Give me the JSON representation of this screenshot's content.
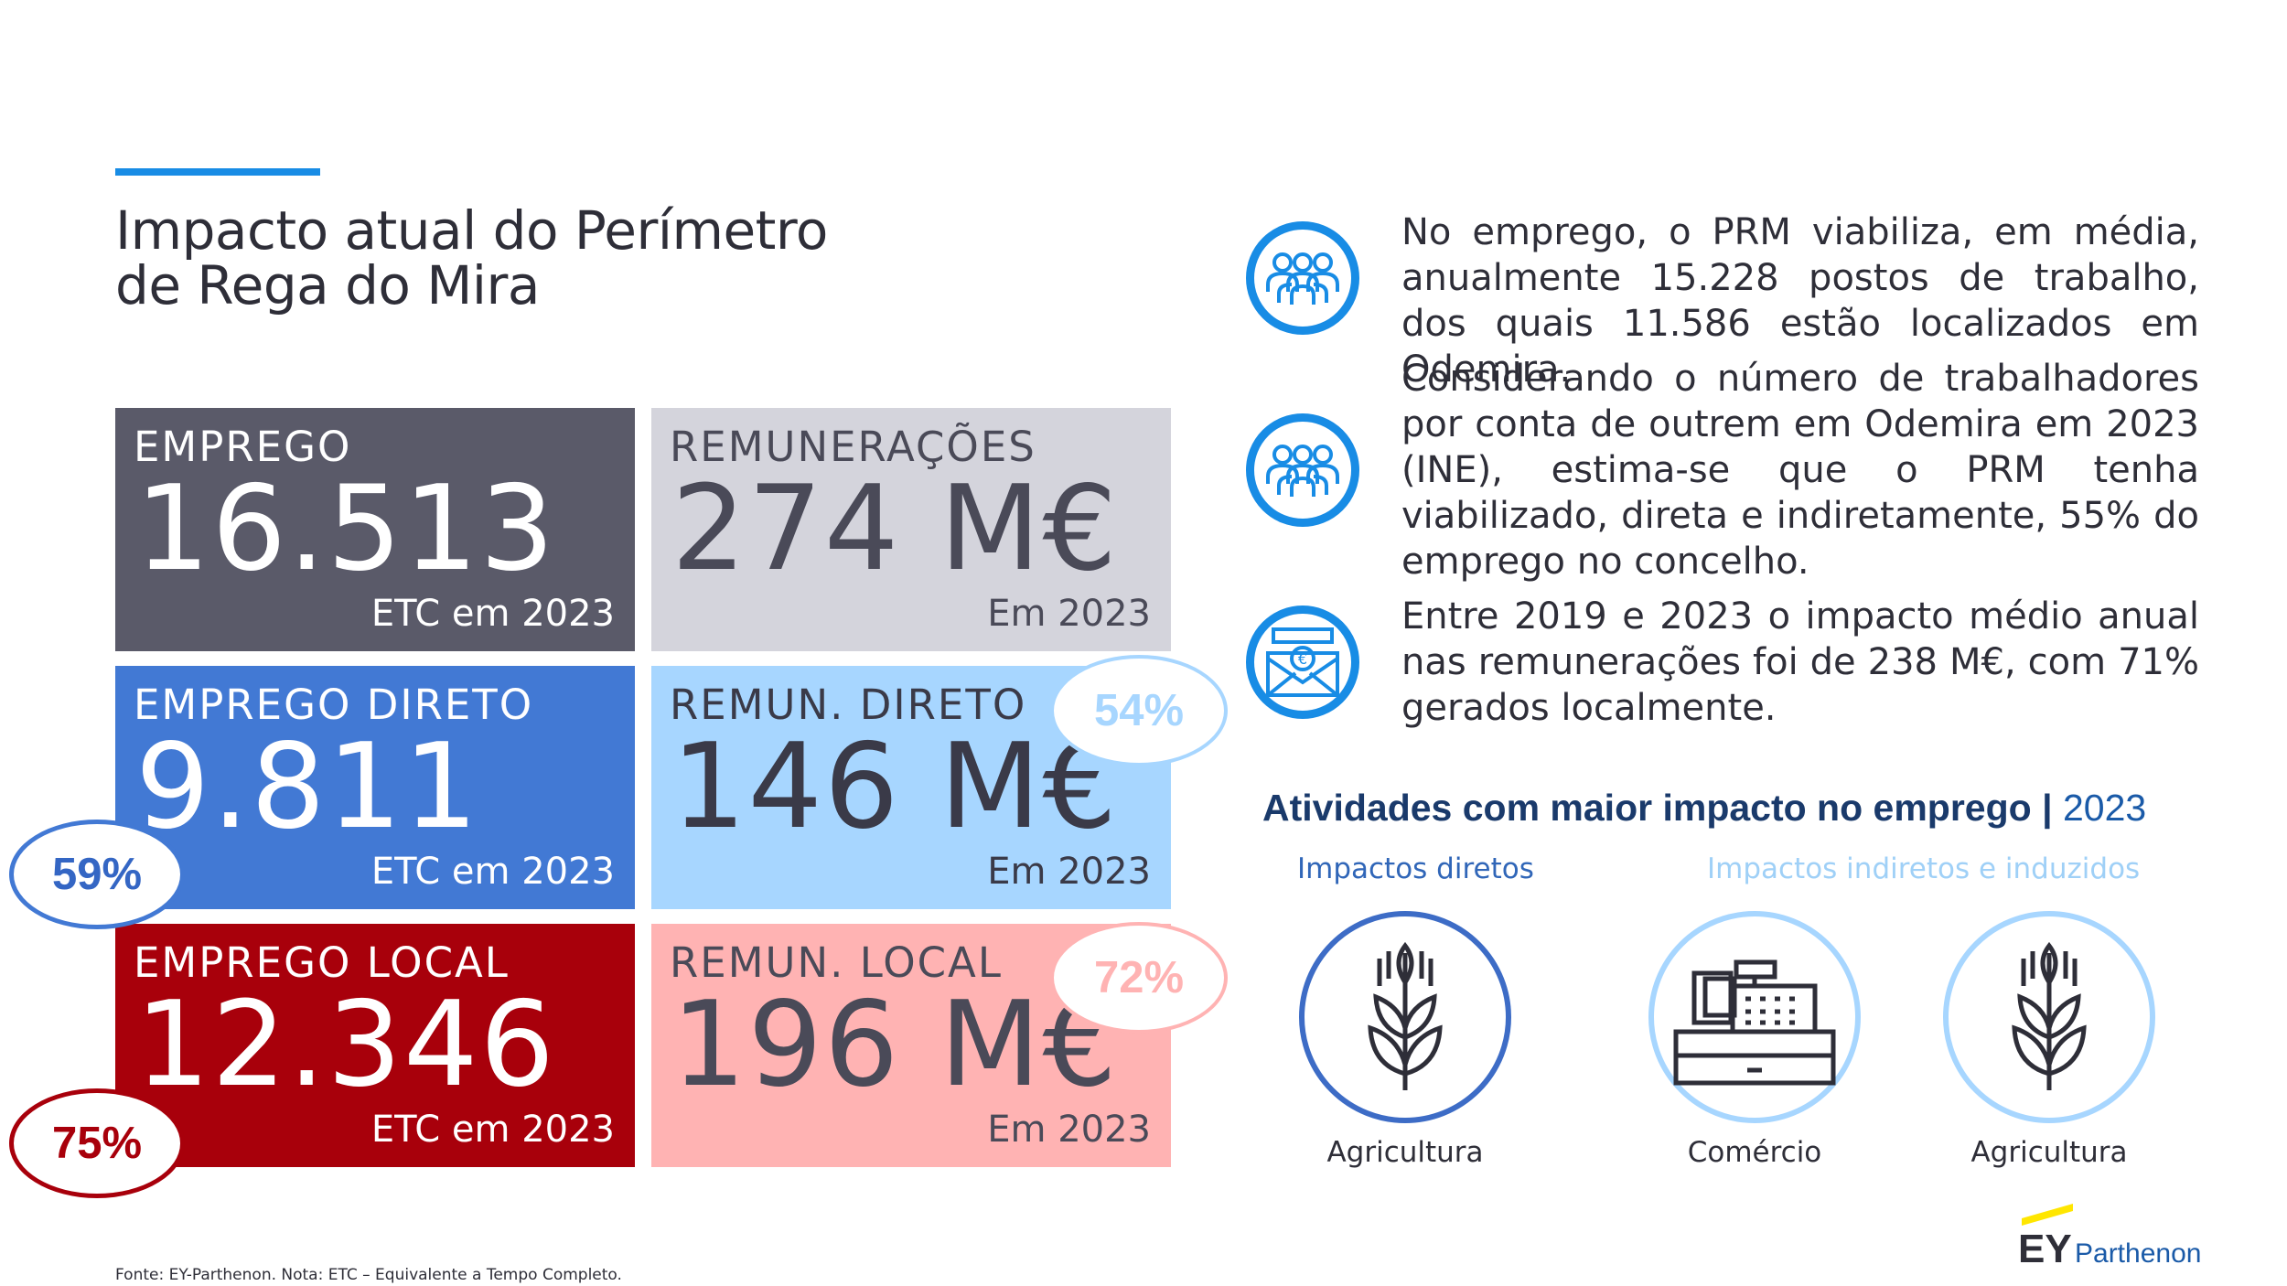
{
  "header": {
    "title_line1": "Impacto atual do Perímetro",
    "title_line2": "de Rega do Mira"
  },
  "cards": {
    "emprego": {
      "label": "EMPREGO",
      "value": "16.513",
      "unit": "ETC em 2023"
    },
    "remuneracoes": {
      "label": "REMUNERAÇÕES",
      "value": "274 M€",
      "unit": "Em 2023"
    },
    "emprego_direto": {
      "label": "EMPREGO DIRETO",
      "value": "9.811",
      "unit": "ETC em 2023",
      "share": "59%"
    },
    "remun_direto": {
      "label": "REMUN. DIRETO",
      "value": "146 M€",
      "unit": "Em 2023",
      "share": "54%"
    },
    "emprego_local": {
      "label": "EMPREGO LOCAL",
      "value": "12.346",
      "unit": "ETC em 2023",
      "share": "75%"
    },
    "remun_local": {
      "label": "REMUN. LOCAL",
      "value": "196 M€",
      "unit": "Em 2023",
      "share": "72%"
    }
  },
  "paragraphs": [
    {
      "icon": "people-group-icon",
      "text": "No emprego, o PRM viabiliza, em média, anualmente 15.228 postos de trabalho, dos quais 11.586 estão localizados em Odemira."
    },
    {
      "icon": "people-group-icon",
      "text": "Considerando o número de trabalhadores por conta de outrem em Odemira em 2023 (INE), estima-se que o PRM tenha viabilizado, direta e indiretamente, 55% do emprego no concelho."
    },
    {
      "icon": "euro-envelope-icon",
      "text": "Entre 2019 e 2023 o impacto médio anual nas remunerações foi de 238 M€, com 71% gerados localmente."
    }
  ],
  "activities": {
    "title": "Atividades com maior impacto no emprego",
    "separator": "|",
    "year": "2023",
    "direct_label": "Impactos diretos",
    "indirect_label": "Impactos indiretos e induzidos",
    "items": [
      {
        "label": "Agricultura",
        "icon": "wheat-icon"
      },
      {
        "label": "Comércio",
        "icon": "cash-register-icon"
      },
      {
        "label": "Agricultura",
        "icon": "wheat-icon"
      }
    ]
  },
  "footer": {
    "source": "Fonte: EY-Parthenon. Nota: ETC – Equivalente a Tempo Completo."
  },
  "logo": {
    "brand": "EY",
    "sub": "Parthenon"
  },
  "colors": {
    "dark_gray": "#5a5a69",
    "light_gray": "#d4d4dc",
    "blue": "#4279d4",
    "light_blue": "#a7d6ff",
    "red": "#a8000b",
    "pink": "#ffb3b3",
    "accent": "#188ce5",
    "navy": "#1a3a6b",
    "ey_yellow": "#ffe600"
  }
}
